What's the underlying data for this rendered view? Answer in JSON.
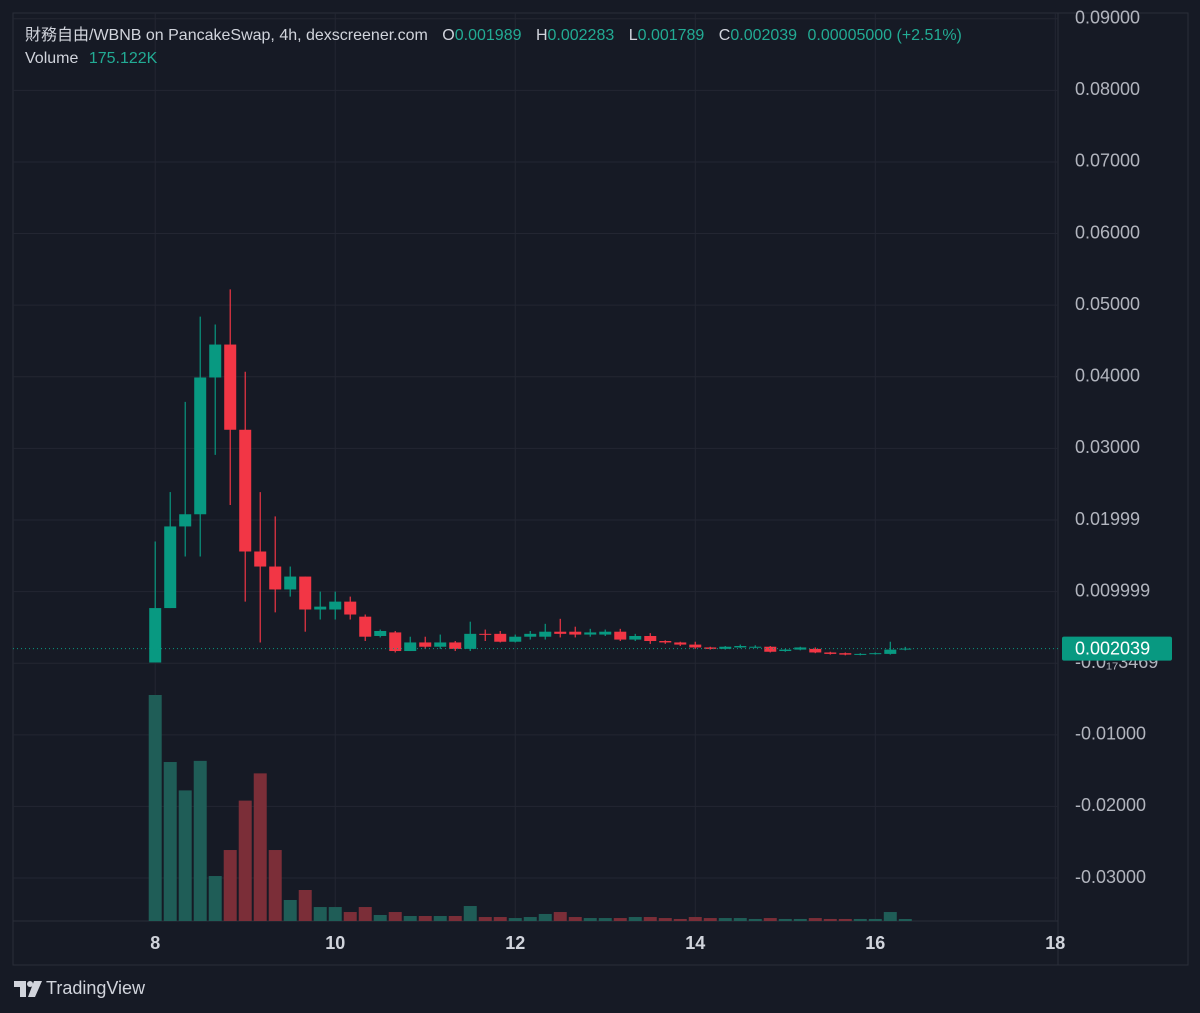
{
  "chart_data": {
    "type": "candlestick",
    "title": "財務自由/WBNB on PancakeSwap, 4h, dexscreener.com",
    "labels": {
      "open": "O",
      "high": "H",
      "low": "L",
      "close": "C",
      "volume": "Volume"
    },
    "change": "0.00005000 (+2.51%)",
    "volume_value_label": "175.122K",
    "x": [
      8,
      8.1667,
      8.3333,
      8.5,
      8.6667,
      8.8333,
      9,
      9.1667,
      9.3333,
      9.5,
      9.6667,
      9.8333,
      10,
      10.1667,
      10.3333,
      10.5,
      10.6667,
      10.8333,
      11,
      11.1667,
      11.3333,
      11.5,
      11.6667,
      11.8333,
      12,
      12.1667,
      12.3333,
      12.5,
      12.6667,
      12.8333,
      13,
      13.1667,
      13.3333,
      13.5,
      13.6667,
      13.8333,
      14,
      14.1667,
      14.3333,
      14.5,
      14.6667,
      14.8333,
      15,
      15.1667,
      15.3333,
      15.5,
      15.6667,
      15.8333,
      16,
      16.1667,
      16.3333
    ],
    "open": [
      0.0001,
      0.0077,
      0.0191,
      0.0208,
      0.0399,
      0.0445,
      0.0326,
      0.0156,
      0.0135,
      0.0103,
      0.0121,
      0.0075,
      0.0075,
      0.0086,
      0.0065,
      0.0038,
      0.0043,
      0.0017,
      0.0029,
      0.0023,
      0.0029,
      0.002,
      0.0041,
      0.0041,
      0.003,
      0.0037,
      0.0037,
      0.0044,
      0.0044,
      0.004,
      0.004,
      0.0044,
      0.0033,
      0.0038,
      0.0031,
      0.0029,
      0.0026,
      0.0022,
      0.002,
      0.0022,
      0.0022,
      0.0023,
      0.0017,
      0.0019,
      0.002,
      0.0015,
      0.0014,
      0.0012,
      0.0013,
      0.0013,
      0.001989
    ],
    "high": [
      0.017,
      0.0239,
      0.0365,
      0.0484,
      0.0473,
      0.0522,
      0.0407,
      0.0239,
      0.0205,
      0.0135,
      0.0121,
      0.01,
      0.01,
      0.0093,
      0.0068,
      0.0047,
      0.0045,
      0.0037,
      0.0037,
      0.004,
      0.0031,
      0.0058,
      0.0047,
      0.0045,
      0.004,
      0.0045,
      0.0055,
      0.0062,
      0.0051,
      0.0048,
      0.0047,
      0.0048,
      0.0041,
      0.0042,
      0.0032,
      0.003,
      0.003,
      0.0023,
      0.0024,
      0.0026,
      0.0025,
      0.0024,
      0.002,
      0.0023,
      0.0022,
      0.0016,
      0.0015,
      0.0014,
      0.0015,
      0.003,
      0.002283
    ],
    "low": [
      0.0001,
      0.0077,
      0.0149,
      0.0149,
      0.0291,
      0.0221,
      0.0086,
      0.0029,
      0.0071,
      0.0093,
      0.0044,
      0.0061,
      0.0061,
      0.0061,
      0.0031,
      0.0036,
      0.0015,
      0.0017,
      0.002,
      0.002,
      0.0017,
      0.0017,
      0.0031,
      0.0029,
      0.0029,
      0.0033,
      0.0033,
      0.0036,
      0.0036,
      0.0037,
      0.0038,
      0.0031,
      0.0031,
      0.0027,
      0.0027,
      0.0024,
      0.002,
      0.0019,
      0.0019,
      0.0021,
      0.0021,
      0.0015,
      0.0016,
      0.0018,
      0.0014,
      0.0012,
      0.0011,
      0.0011,
      0.0012,
      0.0012,
      0.001789
    ],
    "close": [
      0.0077,
      0.0191,
      0.0208,
      0.0399,
      0.0445,
      0.0326,
      0.0156,
      0.0135,
      0.0103,
      0.0121,
      0.0075,
      0.0079,
      0.0086,
      0.0068,
      0.0037,
      0.0045,
      0.0017,
      0.0029,
      0.0023,
      0.0029,
      0.002,
      0.0041,
      0.004,
      0.003,
      0.0037,
      0.0041,
      0.0044,
      0.0041,
      0.004,
      0.0043,
      0.0044,
      0.0033,
      0.0038,
      0.0031,
      0.0029,
      0.0026,
      0.0022,
      0.002,
      0.0023,
      0.0024,
      0.0023,
      0.0016,
      0.0019,
      0.0022,
      0.0015,
      0.0013,
      0.0012,
      0.0013,
      0.0014,
      0.0019,
      0.002039
    ],
    "volume": [
      19900000,
      14000000,
      11500000,
      14100000,
      3960000,
      6250000,
      10600000,
      13000000,
      6250000,
      1850000,
      2730000,
      1230000,
      1230000,
      790000,
      1230000,
      530000,
      790000,
      440000,
      440000,
      440000,
      440000,
      1320000,
      350000,
      350000,
      260000,
      350000,
      620000,
      790000,
      350000,
      260000,
      260000,
      260000,
      350000,
      350000,
      260000,
      180000,
      350000,
      260000,
      260000,
      260000,
      180000,
      260000,
      180000,
      180000,
      260000,
      180000,
      180000,
      180000,
      180000,
      790000,
      175122
    ],
    "xlim": [
      6.42,
      18.03
    ],
    "xticks": [
      8,
      10,
      12,
      14,
      16,
      18
    ],
    "ylim": [
      -0.036,
      0.0908
    ],
    "yticks": [
      {
        "value": 0.09,
        "label": "0.09000"
      },
      {
        "value": 0.08,
        "label": "0.08000"
      },
      {
        "value": 0.07,
        "label": "0.07000"
      },
      {
        "value": 0.06,
        "label": "0.06000"
      },
      {
        "value": 0.05,
        "label": "0.05000"
      },
      {
        "value": 0.04,
        "label": "0.04000"
      },
      {
        "value": 0.03,
        "label": "0.03000"
      },
      0.01999,
      0.009999,
      {
        "value": -3.469e-18,
        "label": "-0.0₁₇3469"
      },
      {
        "value": -0.01,
        "label": "-0.01000"
      },
      {
        "value": -0.02,
        "label": "-0.02000"
      },
      {
        "value": -0.03,
        "label": "-0.03000"
      }
    ],
    "grid": true,
    "up_color": "#089981",
    "down_color": "#f23645",
    "up_volume_color": "#1f5d57",
    "down_volume_color": "#7b2e38"
  },
  "footer": {
    "brand": "TradingView"
  }
}
